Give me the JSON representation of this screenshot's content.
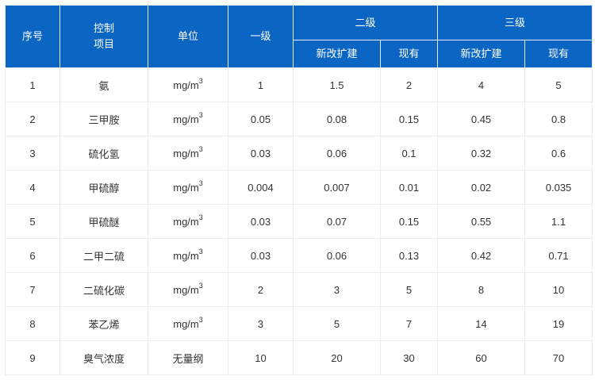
{
  "header": {
    "seq": "序号",
    "item_line1": "控制",
    "item_line2": "项目",
    "unit": "单位",
    "level1": "一级",
    "level2": "二级",
    "level3": "三级",
    "new": "新改扩建",
    "existing": "现有"
  },
  "rows": [
    {
      "seq": "1",
      "item": "氨",
      "unit": "mg/m",
      "sup": "3",
      "l1": "1",
      "l2n": "1.5",
      "l2e": "2",
      "l3n": "4",
      "l3e": "5"
    },
    {
      "seq": "2",
      "item": "三甲胺",
      "unit": "mg/m",
      "sup": "3",
      "l1": "0.05",
      "l2n": "0.08",
      "l2e": "0.15",
      "l3n": "0.45",
      "l3e": "0.8"
    },
    {
      "seq": "3",
      "item": "硫化氢",
      "unit": "mg/m",
      "sup": "3",
      "l1": "0.03",
      "l2n": "0.06",
      "l2e": "0.1",
      "l3n": "0.32",
      "l3e": "0.6"
    },
    {
      "seq": "4",
      "item": "甲硫醇",
      "unit": "mg/m",
      "sup": "3",
      "l1": "0.004",
      "l2n": "0.007",
      "l2e": "0.01",
      "l3n": "0.02",
      "l3e": "0.035"
    },
    {
      "seq": "5",
      "item": "甲硫醚",
      "unit": "mg/m",
      "sup": "3",
      "l1": "0.03",
      "l2n": "0.07",
      "l2e": "0.15",
      "l3n": "0.55",
      "l3e": "1.1"
    },
    {
      "seq": "6",
      "item": "二甲二硫",
      "unit": "mg/m",
      "sup": "3",
      "l1": "0.03",
      "l2n": "0.06",
      "l2e": "0.13",
      "l3n": "0.42",
      "l3e": "0.71"
    },
    {
      "seq": "7",
      "item": "二硫化碳",
      "unit": "mg/m",
      "sup": "3",
      "l1": "2",
      "l2n": "3",
      "l2e": "5",
      "l3n": "8",
      "l3e": "10"
    },
    {
      "seq": "8",
      "item": "苯乙烯",
      "unit": "mg/m",
      "sup": "3",
      "l1": "3",
      "l2n": "5",
      "l2e": "7",
      "l3n": "14",
      "l3e": "19"
    },
    {
      "seq": "9",
      "item": "臭气浓度",
      "unit": "无量纲",
      "l1": "10",
      "l2n": "20",
      "l2e": "30",
      "l3n": "60",
      "l3e": "70"
    }
  ],
  "colors": {
    "header_bg": "#0a66c2",
    "header_text": "#ffffff",
    "body_text": "#333333",
    "border": "#ececec"
  }
}
